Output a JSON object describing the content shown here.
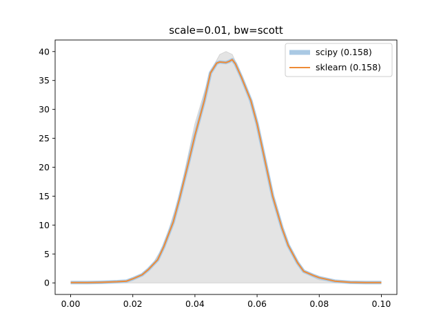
{
  "chart_data": {
    "type": "line",
    "title": "scale=0.01, bw=scott",
    "xlabel": "",
    "ylabel": "",
    "xlim": [
      -0.005,
      0.105
    ],
    "ylim": [
      -2,
      42
    ],
    "xticks": [
      0.0,
      0.02,
      0.04,
      0.06,
      0.08,
      0.1
    ],
    "xtick_labels": [
      "0.00",
      "0.02",
      "0.04",
      "0.06",
      "0.08",
      "0.10"
    ],
    "yticks": [
      0,
      5,
      10,
      15,
      20,
      25,
      30,
      35,
      40
    ],
    "ytick_labels": [
      "0",
      "5",
      "10",
      "15",
      "20",
      "25",
      "30",
      "35",
      "40"
    ],
    "grid": false,
    "legend_position": "top-right",
    "reference_fill": {
      "color": "#d3d3d3",
      "x": [
        0.0,
        0.01,
        0.02,
        0.025,
        0.03,
        0.035,
        0.04,
        0.045,
        0.048,
        0.05,
        0.052,
        0.055,
        0.06,
        0.065,
        0.07,
        0.075,
        0.08,
        0.09,
        0.1
      ],
      "y": [
        0.0,
        0.0,
        0.6,
        2.0,
        6.5,
        15.0,
        27.5,
        36.5,
        39.5,
        40.0,
        39.5,
        36.0,
        27.0,
        15.0,
        6.5,
        1.8,
        0.5,
        0.0,
        0.0
      ]
    },
    "series": [
      {
        "name": "scipy (0.158)",
        "color": "#aac9e4",
        "style": "thick",
        "x": [
          0.0,
          0.005,
          0.01,
          0.015,
          0.018,
          0.02,
          0.023,
          0.025,
          0.028,
          0.03,
          0.033,
          0.035,
          0.038,
          0.04,
          0.043,
          0.045,
          0.047,
          0.048,
          0.05,
          0.051,
          0.052,
          0.053,
          0.055,
          0.058,
          0.06,
          0.063,
          0.065,
          0.068,
          0.07,
          0.073,
          0.075,
          0.078,
          0.08,
          0.085,
          0.09,
          0.095,
          0.1
        ],
        "y": [
          0.05,
          0.05,
          0.1,
          0.2,
          0.3,
          0.7,
          1.4,
          2.3,
          4.0,
          6.3,
          10.5,
          14.5,
          21.0,
          25.5,
          31.5,
          36.3,
          38.0,
          38.2,
          38.1,
          38.3,
          38.6,
          37.9,
          35.5,
          31.5,
          27.5,
          20.0,
          15.0,
          9.5,
          6.5,
          3.5,
          2.0,
          1.3,
          0.9,
          0.3,
          0.1,
          0.05,
          0.05
        ]
      },
      {
        "name": "sklearn (0.158)",
        "color": "#ee8a35",
        "style": "solid",
        "x": [
          0.0,
          0.005,
          0.01,
          0.015,
          0.018,
          0.02,
          0.023,
          0.025,
          0.028,
          0.03,
          0.033,
          0.035,
          0.038,
          0.04,
          0.043,
          0.045,
          0.047,
          0.048,
          0.05,
          0.051,
          0.052,
          0.053,
          0.055,
          0.058,
          0.06,
          0.063,
          0.065,
          0.068,
          0.07,
          0.073,
          0.075,
          0.078,
          0.08,
          0.085,
          0.09,
          0.095,
          0.1
        ],
        "y": [
          0.05,
          0.05,
          0.1,
          0.2,
          0.3,
          0.7,
          1.4,
          2.3,
          4.0,
          6.3,
          10.5,
          14.5,
          21.0,
          25.5,
          31.5,
          36.3,
          38.0,
          38.2,
          38.1,
          38.3,
          38.6,
          37.9,
          35.5,
          31.5,
          27.5,
          20.0,
          15.0,
          9.5,
          6.5,
          3.5,
          2.0,
          1.3,
          0.9,
          0.3,
          0.1,
          0.05,
          0.05
        ]
      }
    ]
  }
}
